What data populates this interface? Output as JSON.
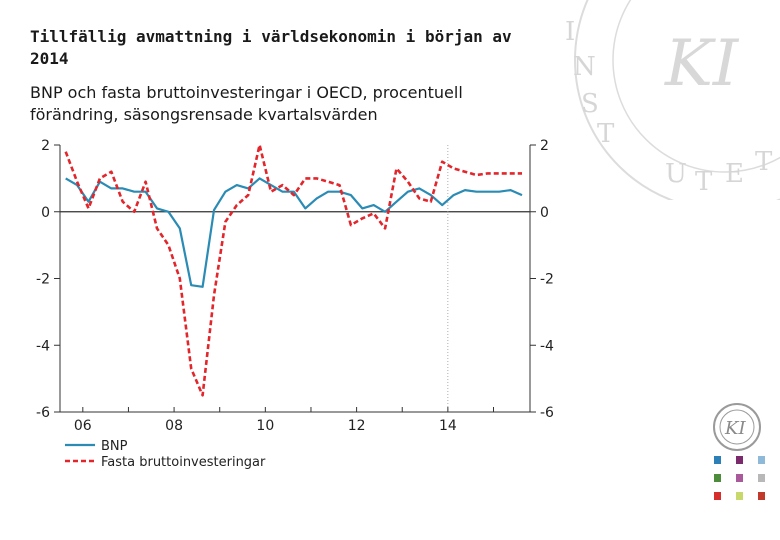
{
  "header": {
    "title": "Tillfällig avmattning i världsekonomin i början av 2014",
    "subtitle": "BNP och fasta bruttoinvesteringar i OECD, procentuell förändring, säsongsrensade kvartalsvärden"
  },
  "colors": {
    "bnp": "#2a8bb5",
    "investments": "#e2262b",
    "axis": "#333333",
    "watermark": "#d9d9d9"
  },
  "icons": [
    "ki-watermark-icon",
    "ki-logo-icon"
  ],
  "swatch_colors": [
    "#2d7fb8",
    "#7b2a6b",
    "#8fb9d9",
    "#4c8c3a",
    "#a85a9a",
    "#b8b8b8",
    "#d62d2d",
    "#c8d86a",
    "#c0392b"
  ],
  "chart_data": {
    "type": "line",
    "title": "",
    "xlabel": "",
    "ylabel": "",
    "ylim": [
      -6,
      2
    ],
    "xlim": [
      2005.5,
      2015.8
    ],
    "yticks": [
      2,
      0,
      -2,
      -4,
      -6
    ],
    "ytick_labels": [
      "2",
      "0",
      "-2",
      "-4",
      "-6"
    ],
    "xticks": [
      2006,
      2008,
      2010,
      2012,
      2014
    ],
    "xtick_labels": [
      "06",
      "08",
      "10",
      "12",
      "14"
    ],
    "vertical_marker": 2014,
    "legend": {
      "placement": "bottom-left",
      "entries": [
        "BNP",
        "Fasta bruttoinvesteringar"
      ]
    },
    "series": [
      {
        "name": "BNP",
        "style": "solid",
        "x": [
          2005.625,
          2005.875,
          2006.125,
          2006.375,
          2006.625,
          2006.875,
          2007.125,
          2007.375,
          2007.625,
          2007.875,
          2008.125,
          2008.375,
          2008.625,
          2008.875,
          2009.125,
          2009.375,
          2009.625,
          2009.875,
          2010.125,
          2010.375,
          2010.625,
          2010.875,
          2011.125,
          2011.375,
          2011.625,
          2011.875,
          2012.125,
          2012.375,
          2012.625,
          2012.875,
          2013.125,
          2013.375,
          2013.625,
          2013.875,
          2014.125,
          2014.375,
          2014.625,
          2014.875,
          2015.125,
          2015.375,
          2015.625
        ],
        "values": [
          1.0,
          0.8,
          0.3,
          0.9,
          0.7,
          0.7,
          0.6,
          0.6,
          0.1,
          0.0,
          -0.5,
          -2.2,
          -2.25,
          0.05,
          0.6,
          0.8,
          0.7,
          1.0,
          0.8,
          0.6,
          0.6,
          0.1,
          0.4,
          0.6,
          0.6,
          0.5,
          0.1,
          0.2,
          0.0,
          0.3,
          0.6,
          0.7,
          0.5,
          0.2,
          0.5,
          0.65,
          0.6,
          0.6,
          0.6,
          0.65,
          0.5
        ]
      },
      {
        "name": "Fasta bruttoinvesteringar",
        "style": "dashed",
        "x": [
          2005.625,
          2005.875,
          2006.125,
          2006.375,
          2006.625,
          2006.875,
          2007.125,
          2007.375,
          2007.625,
          2007.875,
          2008.125,
          2008.375,
          2008.625,
          2008.875,
          2009.125,
          2009.375,
          2009.625,
          2009.875,
          2010.125,
          2010.375,
          2010.625,
          2010.875,
          2011.125,
          2011.375,
          2011.625,
          2011.875,
          2012.125,
          2012.375,
          2012.625,
          2012.875,
          2013.125,
          2013.375,
          2013.625,
          2013.875,
          2014.125,
          2014.375,
          2014.625,
          2014.875,
          2015.125,
          2015.375,
          2015.625
        ],
        "values": [
          1.8,
          0.9,
          0.1,
          1.0,
          1.2,
          0.3,
          0.0,
          0.9,
          -0.5,
          -1.0,
          -2.0,
          -4.7,
          -5.5,
          -2.5,
          -0.3,
          0.2,
          0.5,
          2.0,
          0.6,
          0.8,
          0.5,
          1.0,
          1.0,
          0.9,
          0.8,
          -0.4,
          -0.2,
          -0.05,
          -0.5,
          1.3,
          0.9,
          0.4,
          0.3,
          1.5,
          1.3,
          1.2,
          1.1,
          1.15,
          1.15,
          1.15,
          1.15
        ]
      }
    ]
  }
}
